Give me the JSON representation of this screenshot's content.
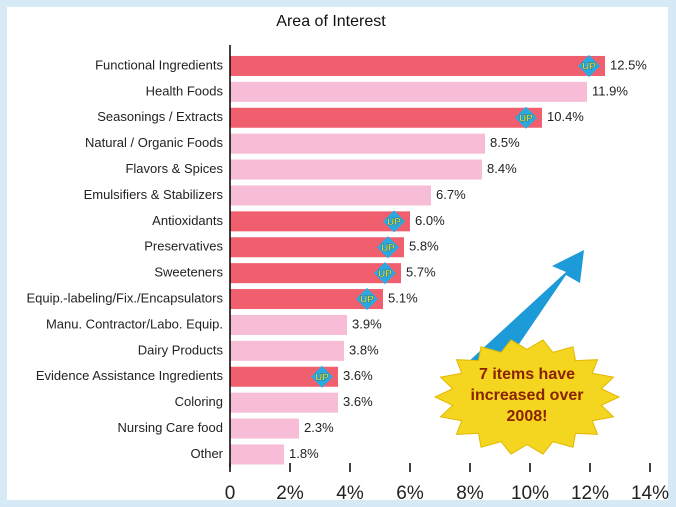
{
  "chart_data": {
    "type": "bar",
    "orientation": "horizontal",
    "title": "Area of Interest",
    "categories": [
      "Functional Ingredients",
      "Health Foods",
      "Seasonings / Extracts",
      "Natural / Organic Foods",
      "Flavors & Spices",
      "Emulsifiers & Stabilizers",
      "Antioxidants",
      "Preservatives",
      "Sweeteners",
      "Equip.-labeling/Fix./Encapsulators",
      "Manu. Contractor/Labo. Equip.",
      "Dairy Products",
      "Evidence Assistance Ingredients",
      "Coloring",
      "Nursing Care food",
      "Other"
    ],
    "values": [
      12.5,
      11.9,
      10.4,
      8.5,
      8.4,
      6.7,
      6.0,
      5.8,
      5.7,
      5.1,
      3.9,
      3.8,
      3.6,
      3.6,
      2.3,
      1.8
    ],
    "value_labels": [
      "12.5%",
      "11.9%",
      "10.4%",
      "8.5%",
      "8.4%",
      "6.7%",
      "6.0%",
      "5.8%",
      "5.7%",
      "5.1%",
      "3.9%",
      "3.8%",
      "3.6%",
      "3.6%",
      "2.3%",
      "1.8%"
    ],
    "increased": [
      true,
      false,
      true,
      false,
      false,
      false,
      true,
      true,
      true,
      true,
      false,
      false,
      true,
      false,
      false,
      false
    ],
    "increased_color": "#ef5f6e",
    "color": "#f7bdd6",
    "badge_label": "UP",
    "xlim": [
      0,
      14
    ],
    "xticks": [
      0,
      {
        "value": 2,
        "label": "2%"
      },
      {
        "value": 4,
        "label": "4%"
      },
      {
        "value": 6,
        "label": "6%"
      },
      {
        "value": 8,
        "label": "8%"
      },
      {
        "value": 10,
        "label": "10%"
      },
      {
        "value": 12,
        "label": "12%"
      },
      {
        "value": 14,
        "label": "14%"
      }
    ],
    "annotation": [
      "7 items have",
      "increased over",
      "2008!"
    ]
  }
}
